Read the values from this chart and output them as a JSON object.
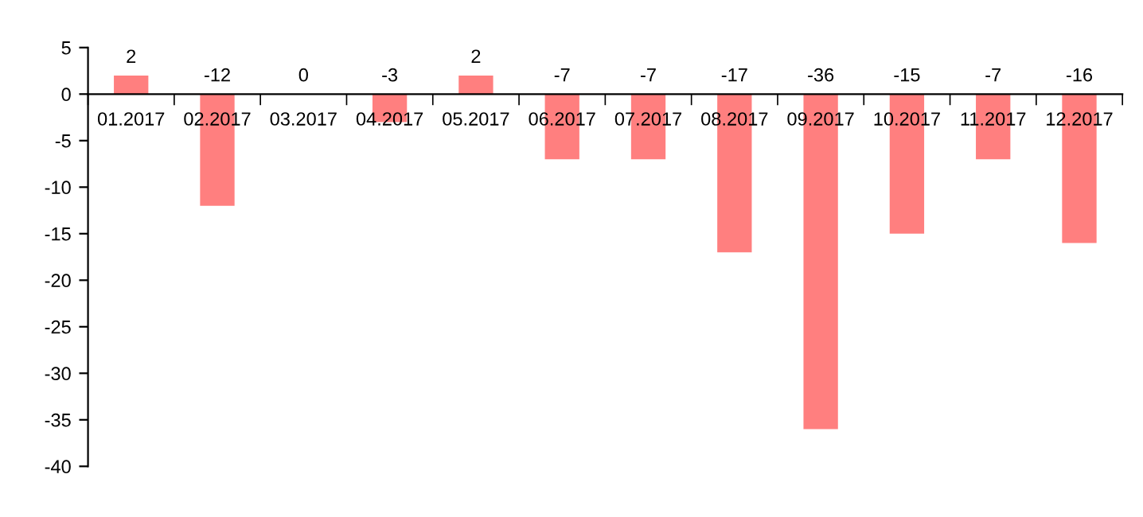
{
  "chart_data": {
    "type": "bar",
    "categories": [
      "01.2017",
      "02.2017",
      "03.2017",
      "04.2017",
      "05.2017",
      "06.2017",
      "07.2017",
      "08.2017",
      "09.2017",
      "10.2017",
      "11.2017",
      "12.2017"
    ],
    "values": [
      2,
      -12,
      0,
      -3,
      2,
      -7,
      -7,
      -17,
      -36,
      -15,
      -7,
      -16
    ],
    "color": "#ff7f7f",
    "ylim": [
      -40,
      5
    ],
    "yticks": [
      -40,
      -35,
      -30,
      -25,
      -20,
      -15,
      -10,
      -5,
      0,
      5
    ],
    "data_labels": true,
    "grid": false,
    "legend": false
  }
}
